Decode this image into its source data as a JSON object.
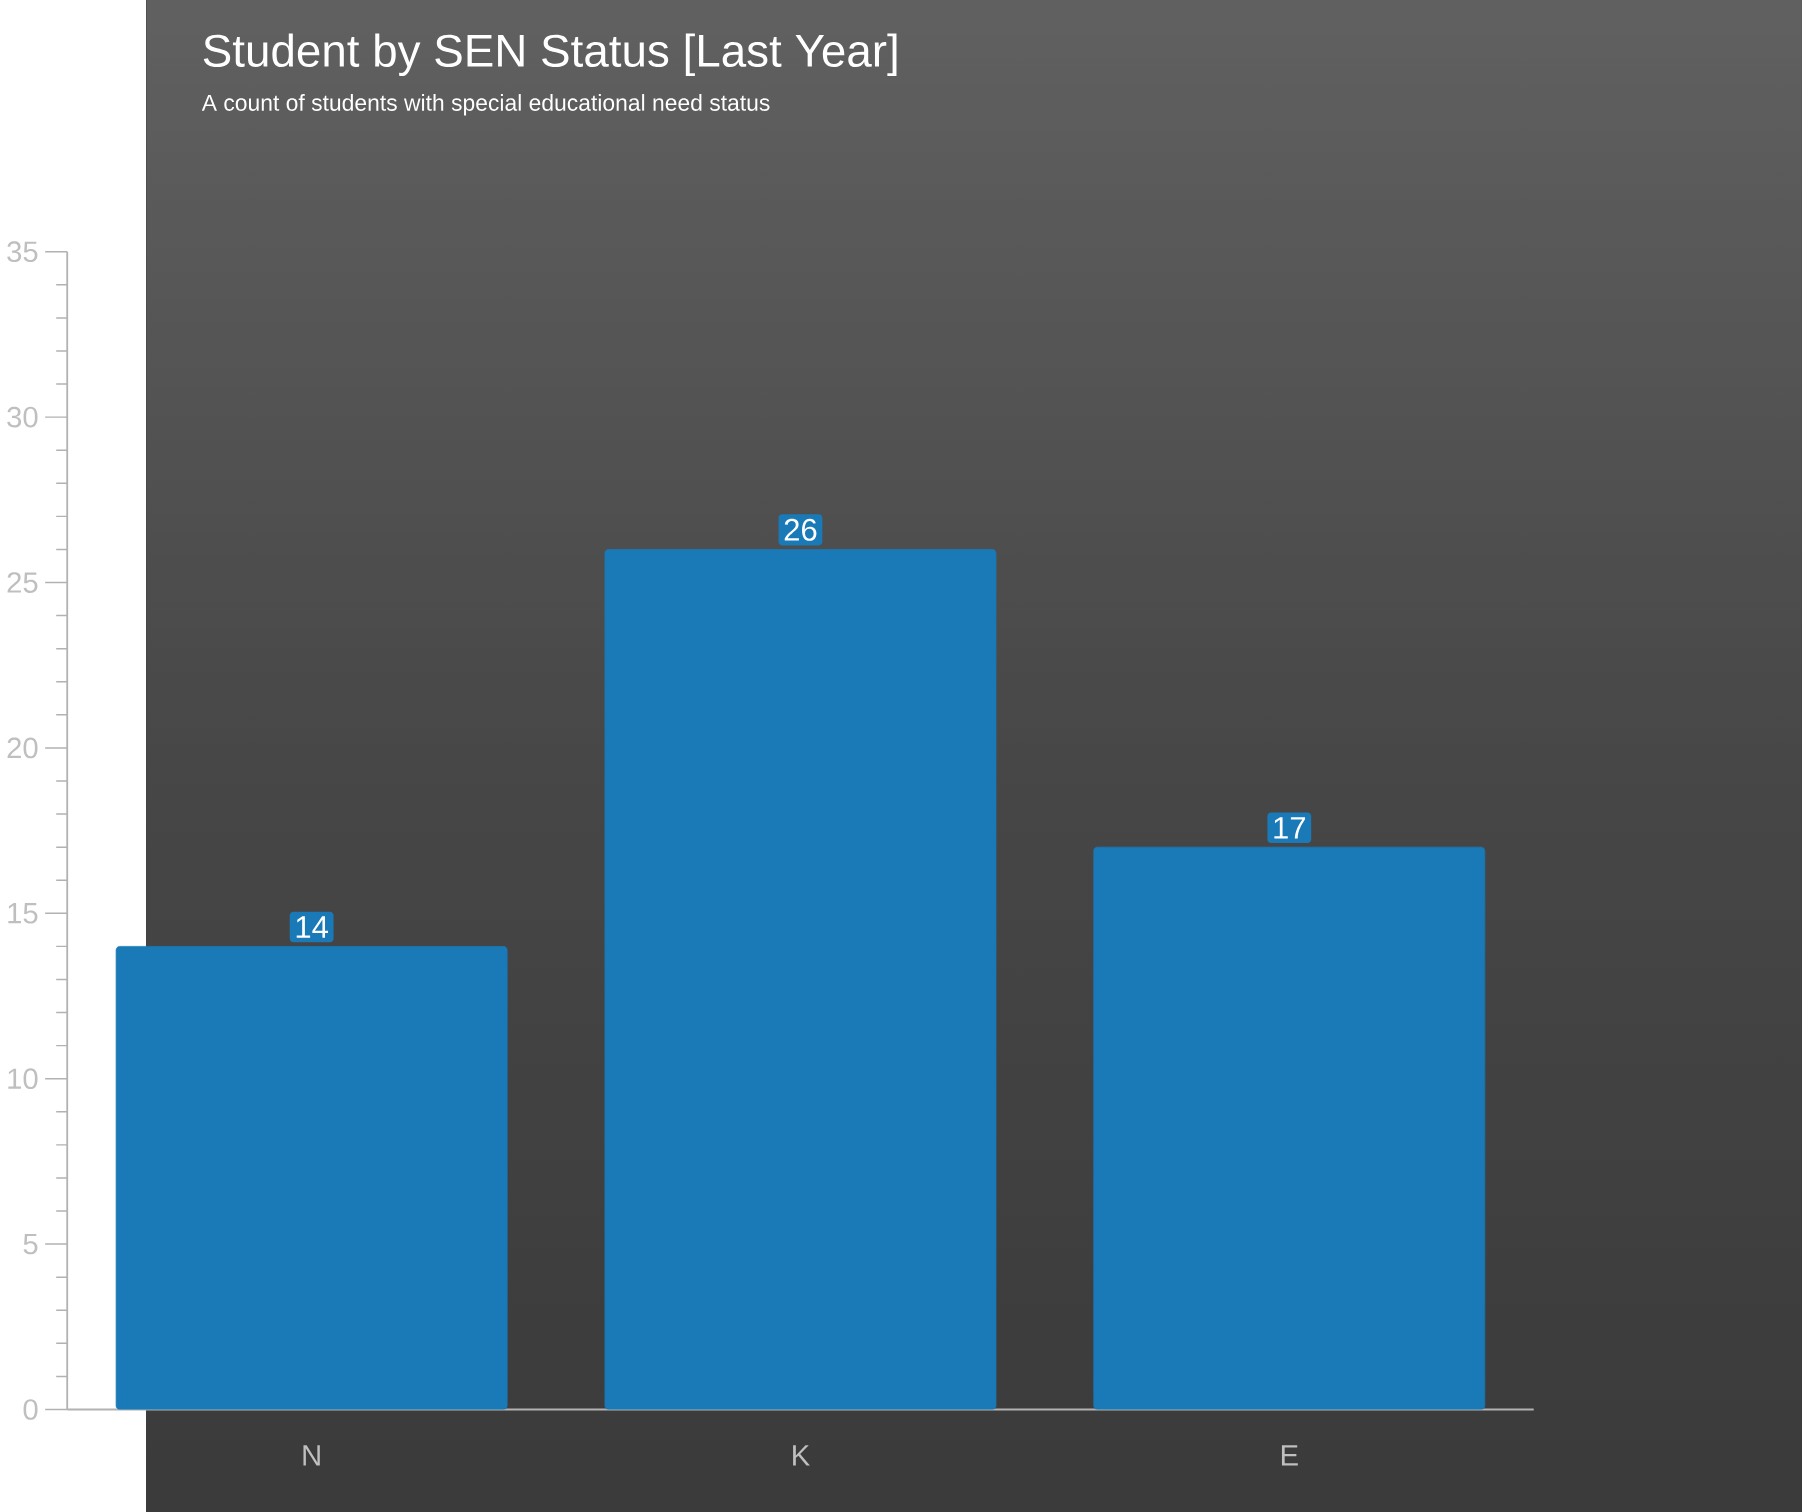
{
  "chart_data": {
    "type": "bar",
    "title": "Student by SEN Status [Last Year]",
    "subtitle": "A count of students with special educational need status",
    "categories": [
      "N",
      "K",
      "E"
    ],
    "values": [
      14,
      26,
      17
    ],
    "color": "#1a7ab8",
    "ylim": [
      0,
      35
    ],
    "yticks": [
      0,
      5,
      10,
      15,
      20,
      25,
      30,
      35
    ],
    "data_labels": true
  }
}
